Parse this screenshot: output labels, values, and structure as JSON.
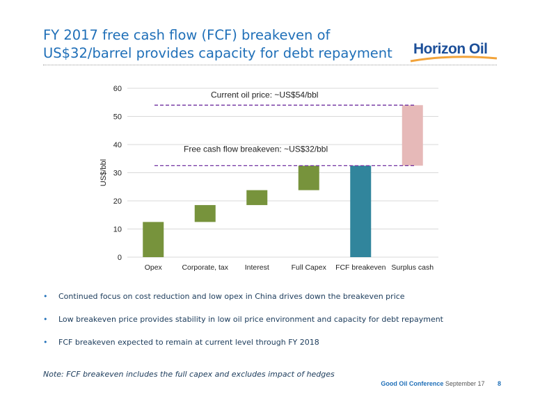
{
  "slide": {
    "title_line1": "FY 2017 free cash flow (FCF) breakeven of",
    "title_line2": "US$32/barrel provides capacity for debt repayment"
  },
  "logo": {
    "text": "Horizon Oil",
    "primary_color": "#1c4f99",
    "accent_color": "#f2a33a"
  },
  "bullets": [
    "Continued focus on cost reduction and low opex in China drives down the breakeven price",
    "Low breakeven price provides stability in low oil price environment and capacity for debt repayment",
    "FCF breakeven expected to remain at current level through FY 2018"
  ],
  "note": "Note: FCF breakeven includes the full capex and excludes impact of hedges",
  "footer": {
    "conference": "Good Oil Conference",
    "date": "September 17",
    "page": "8"
  },
  "chart_data": {
    "type": "bar",
    "subtype": "waterfall",
    "categories": [
      "Opex",
      "Corporate, tax",
      "Interest",
      "Full Capex",
      "FCF breakeven",
      "Surplus cash"
    ],
    "bars": [
      {
        "category": "Opex",
        "base": 0,
        "top": 12.5,
        "color": "#77933c"
      },
      {
        "category": "Corporate, tax",
        "base": 12.5,
        "top": 18.5,
        "color": "#77933c"
      },
      {
        "category": "Interest",
        "base": 18.5,
        "top": 23.8,
        "color": "#77933c"
      },
      {
        "category": "Full Capex",
        "base": 23.8,
        "top": 32.5,
        "color": "#77933c"
      },
      {
        "category": "FCF breakeven",
        "base": 0,
        "top": 32.5,
        "color": "#31859c"
      },
      {
        "category": "Surplus cash",
        "base": 32.5,
        "top": 54,
        "color": "#e6b9b8"
      }
    ],
    "reference_lines": [
      {
        "value": 54,
        "label": "Current oil price: ~US$54/bbl",
        "color": "#7030a0"
      },
      {
        "value": 32.5,
        "label": "Free cash flow breakeven: ~US$32/bbl",
        "color": "#7030a0"
      }
    ],
    "ylabel": "US$/bbl",
    "xlabel": "",
    "ylim": [
      0,
      60
    ],
    "yticks": [
      0,
      10,
      20,
      30,
      40,
      50,
      60
    ],
    "grid": true,
    "legend": "none"
  }
}
